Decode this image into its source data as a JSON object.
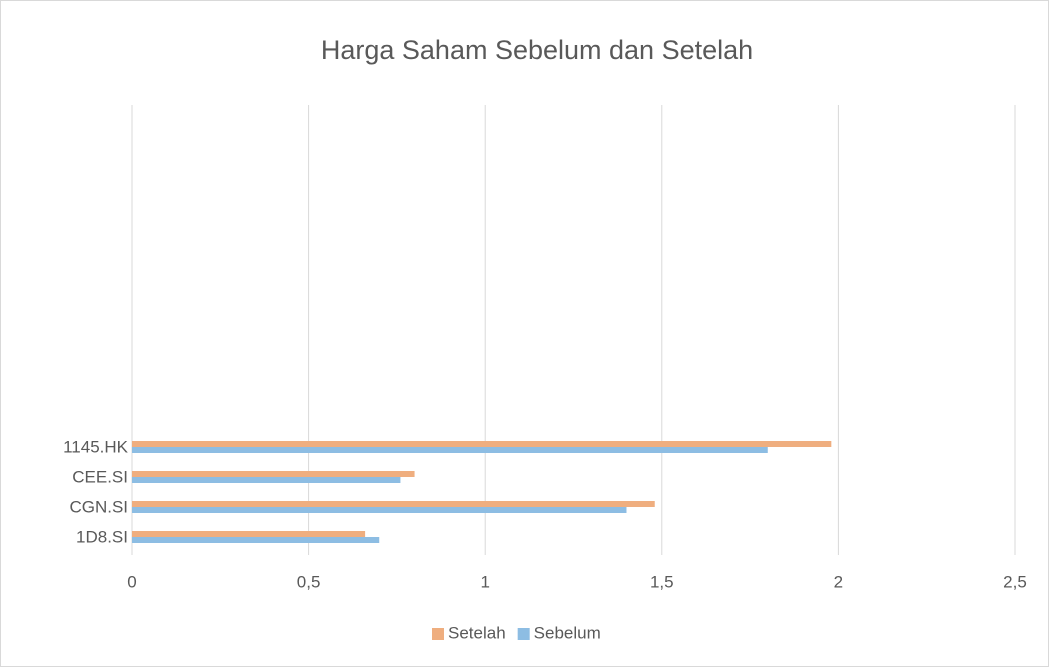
{
  "chart_data": {
    "type": "hbar",
    "title": "Harga Saham Sebelum dan Setelah",
    "categories": [
      "1D8.SI",
      "CGN.SI",
      "CEE.SI",
      "1145.HK",
      null,
      null,
      null,
      null,
      null,
      null,
      null,
      null,
      null,
      null,
      null
    ],
    "series": [
      {
        "name": "Setelah",
        "color": "#efae7f",
        "values": [
          0.66,
          1.48,
          0.8,
          1.98,
          null,
          null,
          null,
          null,
          null,
          null,
          null,
          null,
          null,
          null,
          null
        ]
      },
      {
        "name": "Sebelum",
        "color": "#8dbde3",
        "values": [
          0.7,
          1.4,
          0.76,
          1.8,
          null,
          null,
          null,
          null,
          null,
          null,
          null,
          null,
          null,
          null,
          null
        ]
      }
    ],
    "xlim": [
      0,
      2.5
    ],
    "xticks": [
      0,
      {
        "value": 0.5,
        "label": "0,5"
      },
      1,
      {
        "value": 1.5,
        "label": "1,5"
      },
      2,
      {
        "value": 2.5,
        "label": "2,5"
      }
    ],
    "grid": true,
    "legend": "bottom"
  }
}
